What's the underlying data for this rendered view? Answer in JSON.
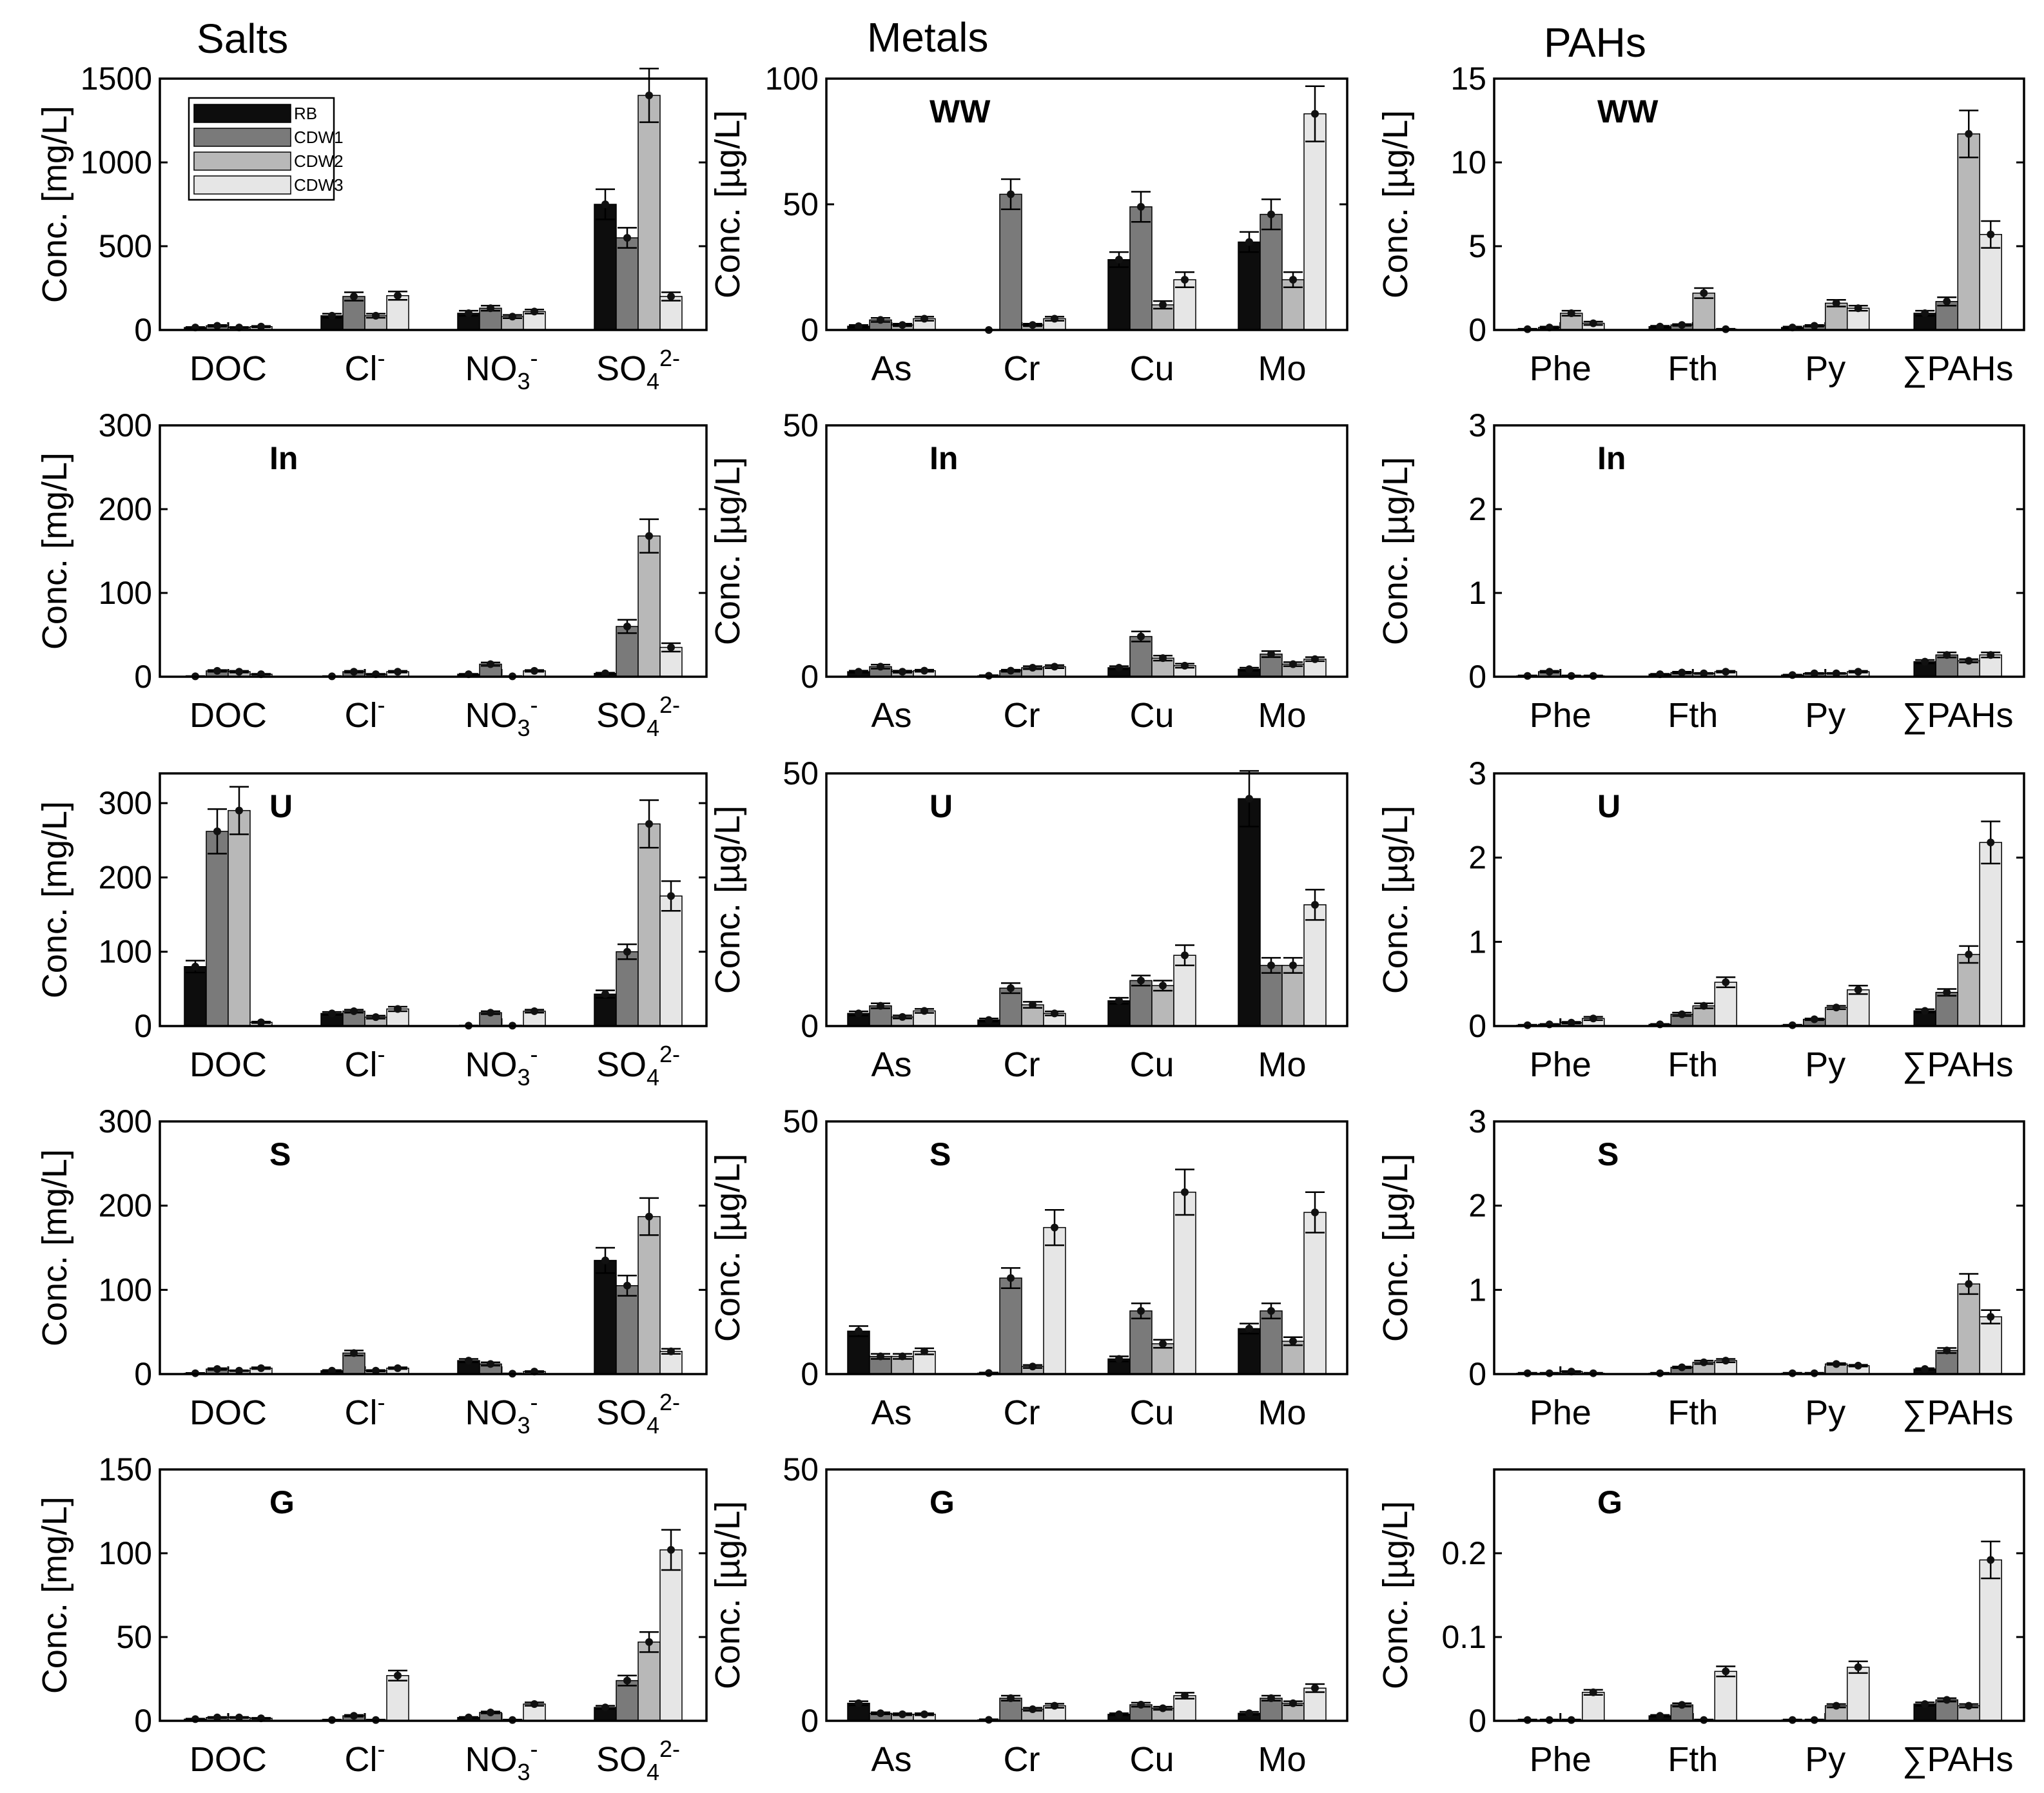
{
  "column_titles": [
    "Salts",
    "Metals",
    "PAHs"
  ],
  "series_names": [
    "RB",
    "CDW1",
    "CDW2",
    "CDW3"
  ],
  "series_colors": [
    "#0d0d0d",
    "#7a7a7a",
    "#b8b8b8",
    "#e6e6e6"
  ],
  "chart_data": [
    {
      "type": "bar",
      "panel": "WW",
      "group": "Salts",
      "ylabel": "Conc. [mg/L]",
      "ylim": [
        0,
        1500
      ],
      "yticks": [
        0,
        500,
        1000,
        1500
      ],
      "legend": "top-left",
      "categories": [
        "DOC",
        "Cl⁻",
        "NO₃⁻",
        "SO₄²⁻"
      ],
      "series": [
        {
          "name": "RB",
          "values": [
            15,
            85,
            100,
            750
          ]
        },
        {
          "name": "CDW1",
          "values": [
            25,
            200,
            130,
            550
          ]
        },
        {
          "name": "CDW2",
          "values": [
            15,
            85,
            80,
            1400
          ]
        },
        {
          "name": "CDW3",
          "values": [
            20,
            205,
            110,
            200
          ]
        }
      ],
      "errors": [
        [
          3,
          12,
          15,
          90
        ],
        [
          5,
          25,
          15,
          60
        ],
        [
          3,
          12,
          10,
          160
        ],
        [
          4,
          25,
          12,
          25
        ]
      ]
    },
    {
      "type": "bar",
      "panel": "WW",
      "group": "Metals",
      "ylabel": "Conc. [µg/L]",
      "ylim": [
        0,
        100
      ],
      "yticks": [
        0,
        50,
        100
      ],
      "categories": [
        "As",
        "Cr",
        "Cu",
        "Mo"
      ],
      "series": [
        {
          "name": "RB",
          "values": [
            1.5,
            0,
            28,
            35
          ]
        },
        {
          "name": "CDW1",
          "values": [
            4,
            54,
            49,
            46
          ]
        },
        {
          "name": "CDW2",
          "values": [
            2,
            2,
            10,
            20
          ]
        },
        {
          "name": "CDW3",
          "values": [
            4.5,
            4.5,
            20,
            86
          ]
        }
      ],
      "errors": [
        [
          0.5,
          0,
          3,
          4
        ],
        [
          0.8,
          6,
          6,
          6
        ],
        [
          0.5,
          0.5,
          1.5,
          3
        ],
        [
          0.8,
          0.8,
          3,
          11
        ]
      ]
    },
    {
      "type": "bar",
      "panel": "WW",
      "group": "PAHs",
      "ylabel": "Conc. [µg/L]",
      "ylim": [
        0,
        15
      ],
      "yticks": [
        0,
        5,
        10,
        15
      ],
      "categories": [
        "Phe",
        "Fth",
        "Py",
        "∑PAHs"
      ],
      "series": [
        {
          "name": "RB",
          "values": [
            0.05,
            0.2,
            0.15,
            1.0
          ]
        },
        {
          "name": "CDW1",
          "values": [
            0.15,
            0.3,
            0.25,
            1.7
          ]
        },
        {
          "name": "CDW2",
          "values": [
            1.0,
            2.2,
            1.6,
            11.7
          ]
        },
        {
          "name": "CDW3",
          "values": [
            0.4,
            0.05,
            1.3,
            5.7
          ]
        }
      ],
      "errors": [
        [
          0.02,
          0.05,
          0.05,
          0.15
        ],
        [
          0.05,
          0.05,
          0.05,
          0.25
        ],
        [
          0.15,
          0.3,
          0.2,
          1.4
        ],
        [
          0.1,
          0.02,
          0.15,
          0.8
        ]
      ]
    },
    {
      "type": "bar",
      "panel": "In",
      "group": "Salts",
      "ylabel": "Conc. [mg/L]",
      "ylim": [
        0,
        300
      ],
      "yticks": [
        0,
        100,
        200,
        300
      ],
      "categories": [
        "DOC",
        "Cl⁻",
        "NO₃⁻",
        "SO₄²⁻"
      ],
      "series": [
        {
          "name": "RB",
          "values": [
            0.5,
            0.5,
            3,
            4
          ]
        },
        {
          "name": "CDW1",
          "values": [
            7,
            6,
            15,
            60
          ]
        },
        {
          "name": "CDW2",
          "values": [
            6,
            3,
            0.5,
            168
          ]
        },
        {
          "name": "CDW3",
          "values": [
            3,
            6,
            7,
            35
          ]
        }
      ],
      "errors": [
        [
          0.3,
          0.3,
          0.5,
          0.8
        ],
        [
          1,
          1,
          2,
          8
        ],
        [
          1,
          0.5,
          0.3,
          20
        ],
        [
          0.5,
          1,
          1,
          5
        ]
      ]
    },
    {
      "type": "bar",
      "panel": "In",
      "group": "Metals",
      "ylabel": "Conc. [µg/L]",
      "ylim": [
        0,
        50
      ],
      "yticks": [
        0,
        50
      ],
      "categories": [
        "As",
        "Cr",
        "Cu",
        "Mo"
      ],
      "series": [
        {
          "name": "RB",
          "values": [
            1,
            0.2,
            1.8,
            1.5
          ]
        },
        {
          "name": "CDW1",
          "values": [
            2,
            1.2,
            8,
            4.5
          ]
        },
        {
          "name": "CDW2",
          "values": [
            1,
            1.8,
            3.7,
            2.5
          ]
        },
        {
          "name": "CDW3",
          "values": [
            1.2,
            2,
            2.2,
            3.5
          ]
        }
      ],
      "errors": [
        [
          0.2,
          0.1,
          0.3,
          0.3
        ],
        [
          0.4,
          0.2,
          1,
          0.6
        ],
        [
          0.2,
          0.3,
          0.5,
          0.4
        ],
        [
          0.2,
          0.3,
          0.4,
          0.4
        ]
      ]
    },
    {
      "type": "bar",
      "panel": "In",
      "group": "PAHs",
      "ylabel": "Conc. [µg/L]",
      "ylim": [
        0,
        3
      ],
      "yticks": [
        0,
        1,
        2,
        3
      ],
      "categories": [
        "Phe",
        "Fth",
        "Py",
        "∑PAHs"
      ],
      "series": [
        {
          "name": "RB",
          "values": [
            0.01,
            0.03,
            0.02,
            0.18
          ]
        },
        {
          "name": "CDW1",
          "values": [
            0.06,
            0.05,
            0.04,
            0.26
          ]
        },
        {
          "name": "CDW2",
          "values": [
            0.01,
            0.04,
            0.04,
            0.19
          ]
        },
        {
          "name": "CDW3",
          "values": [
            0.01,
            0.06,
            0.06,
            0.26
          ]
        }
      ],
      "errors": [
        [
          0.005,
          0.005,
          0.005,
          0.02
        ],
        [
          0.01,
          0.01,
          0.005,
          0.03
        ],
        [
          0.005,
          0.005,
          0.005,
          0.02
        ],
        [
          0.005,
          0.01,
          0.01,
          0.03
        ]
      ]
    },
    {
      "type": "bar",
      "panel": "U",
      "group": "Salts",
      "ylabel": "Conc. [mg/L]",
      "ylim": [
        0,
        340
      ],
      "yticks": [
        0,
        100,
        200,
        300
      ],
      "categories": [
        "DOC",
        "Cl⁻",
        "NO₃⁻",
        "SO₄²⁻"
      ],
      "series": [
        {
          "name": "RB",
          "values": [
            80,
            17,
            0.5,
            43
          ]
        },
        {
          "name": "CDW1",
          "values": [
            262,
            20,
            18,
            100
          ]
        },
        {
          "name": "CDW2",
          "values": [
            290,
            12,
            0.5,
            272
          ]
        },
        {
          "name": "CDW3",
          "values": [
            5,
            23,
            20,
            175
          ]
        }
      ],
      "errors": [
        [
          8,
          2,
          0.3,
          5
        ],
        [
          30,
          2,
          2,
          10
        ],
        [
          32,
          2,
          0.3,
          32
        ],
        [
          1,
          3,
          2,
          20
        ]
      ]
    },
    {
      "type": "bar",
      "panel": "U",
      "group": "Metals",
      "ylabel": "Conc. [µg/L]",
      "ylim": [
        0,
        50
      ],
      "yticks": [
        0,
        50
      ],
      "categories": [
        "As",
        "Cr",
        "Cu",
        "Mo"
      ],
      "series": [
        {
          "name": "RB",
          "values": [
            2.5,
            1.2,
            5,
            45
          ]
        },
        {
          "name": "CDW1",
          "values": [
            4,
            7.5,
            9,
            12
          ]
        },
        {
          "name": "CDW2",
          "values": [
            1.8,
            4.2,
            8,
            12
          ]
        },
        {
          "name": "CDW3",
          "values": [
            3,
            2.5,
            14,
            24
          ]
        }
      ],
      "errors": [
        [
          0.4,
          0.3,
          0.6,
          5.5
        ],
        [
          0.5,
          1,
          1,
          1.5
        ],
        [
          0.3,
          0.6,
          1,
          1.5
        ],
        [
          0.4,
          0.4,
          2,
          3
        ]
      ]
    },
    {
      "type": "bar",
      "panel": "U",
      "group": "PAHs",
      "ylabel": "Conc. [µg/L]",
      "ylim": [
        0,
        3
      ],
      "yticks": [
        0,
        1,
        2,
        3
      ],
      "categories": [
        "Phe",
        "Fth",
        "Py",
        "∑PAHs"
      ],
      "series": [
        {
          "name": "RB",
          "values": [
            0.01,
            0.02,
            0.01,
            0.18
          ]
        },
        {
          "name": "CDW1",
          "values": [
            0.02,
            0.14,
            0.08,
            0.4
          ]
        },
        {
          "name": "CDW2",
          "values": [
            0.04,
            0.24,
            0.22,
            0.85
          ]
        },
        {
          "name": "CDW3",
          "values": [
            0.09,
            0.52,
            0.43,
            2.18
          ]
        }
      ],
      "errors": [
        [
          0.005,
          0.005,
          0.005,
          0.02
        ],
        [
          0.005,
          0.02,
          0.01,
          0.04
        ],
        [
          0.01,
          0.03,
          0.02,
          0.1
        ],
        [
          0.02,
          0.06,
          0.05,
          0.25
        ]
      ]
    },
    {
      "type": "bar",
      "panel": "S",
      "group": "Salts",
      "ylabel": "Conc. [mg/L]",
      "ylim": [
        0,
        300
      ],
      "yticks": [
        0,
        100,
        200,
        300
      ],
      "categories": [
        "DOC",
        "Cl⁻",
        "NO₃⁻",
        "SO₄²⁻"
      ],
      "series": [
        {
          "name": "RB",
          "values": [
            1,
            4,
            16,
            135
          ]
        },
        {
          "name": "CDW1",
          "values": [
            6,
            25,
            12,
            105
          ]
        },
        {
          "name": "CDW2",
          "values": [
            4,
            4,
            0.5,
            187
          ]
        },
        {
          "name": "CDW3",
          "values": [
            7,
            7,
            3,
            27
          ]
        }
      ],
      "errors": [
        [
          0.3,
          0.8,
          2,
          15
        ],
        [
          1,
          3,
          2,
          12
        ],
        [
          0.5,
          0.8,
          0.3,
          22
        ],
        [
          1,
          1,
          0.5,
          3
        ]
      ]
    },
    {
      "type": "bar",
      "panel": "S",
      "group": "Metals",
      "ylabel": "Conc. [µg/L]",
      "ylim": [
        0,
        50
      ],
      "yticks": [
        0,
        50
      ],
      "categories": [
        "As",
        "Cr",
        "Cu",
        "Mo"
      ],
      "series": [
        {
          "name": "RB",
          "values": [
            8.5,
            0.2,
            3,
            9
          ]
        },
        {
          "name": "CDW1",
          "values": [
            3.5,
            19,
            12.5,
            12.5
          ]
        },
        {
          "name": "CDW2",
          "values": [
            3.5,
            1.5,
            6,
            6.5
          ]
        },
        {
          "name": "CDW3",
          "values": [
            4.5,
            29,
            36,
            32
          ]
        }
      ],
      "errors": [
        [
          1,
          0.1,
          0.5,
          1
        ],
        [
          0.5,
          2,
          1.5,
          1.5
        ],
        [
          0.5,
          0.3,
          0.8,
          0.8
        ],
        [
          0.6,
          3.5,
          4.5,
          4
        ]
      ]
    },
    {
      "type": "bar",
      "panel": "S",
      "group": "PAHs",
      "ylabel": "Conc. [µg/L]",
      "ylim": [
        0,
        3
      ],
      "yticks": [
        0,
        1,
        2,
        3
      ],
      "categories": [
        "Phe",
        "Fth",
        "Py",
        "∑PAHs"
      ],
      "series": [
        {
          "name": "RB",
          "values": [
            0.01,
            0.01,
            0.01,
            0.06
          ]
        },
        {
          "name": "CDW1",
          "values": [
            0.01,
            0.08,
            0.01,
            0.28
          ]
        },
        {
          "name": "CDW2",
          "values": [
            0.03,
            0.14,
            0.12,
            1.07
          ]
        },
        {
          "name": "CDW3",
          "values": [
            0.01,
            0.16,
            0.1,
            0.68
          ]
        }
      ],
      "errors": [
        [
          0.005,
          0.005,
          0.005,
          0.01
        ],
        [
          0.005,
          0.01,
          0.005,
          0.03
        ],
        [
          0.005,
          0.02,
          0.01,
          0.12
        ],
        [
          0.005,
          0.02,
          0.01,
          0.08
        ]
      ]
    },
    {
      "type": "bar",
      "panel": "G",
      "group": "Salts",
      "ylabel": "Conc. [mg/L]",
      "ylim": [
        0,
        150
      ],
      "yticks": [
        0,
        50,
        100,
        150
      ],
      "categories": [
        "DOC",
        "Cl⁻",
        "NO₃⁻",
        "SO₄²⁻"
      ],
      "series": [
        {
          "name": "RB",
          "values": [
            1,
            0.5,
            2,
            8
          ]
        },
        {
          "name": "CDW1",
          "values": [
            2,
            3,
            5,
            24
          ]
        },
        {
          "name": "CDW2",
          "values": [
            2,
            0.5,
            0.5,
            47
          ]
        },
        {
          "name": "CDW3",
          "values": [
            1.5,
            27,
            10,
            102
          ]
        }
      ],
      "errors": [
        [
          0.3,
          0.2,
          0.3,
          1
        ],
        [
          0.3,
          0.5,
          0.6,
          3
        ],
        [
          0.3,
          0.2,
          0.2,
          6
        ],
        [
          0.3,
          3,
          1,
          12
        ]
      ]
    },
    {
      "type": "bar",
      "panel": "G",
      "group": "Metals",
      "ylabel": "Conc. [µg/L]",
      "ylim": [
        0,
        50
      ],
      "yticks": [
        0,
        50
      ],
      "categories": [
        "As",
        "Cr",
        "Cu",
        "Mo"
      ],
      "series": [
        {
          "name": "RB",
          "values": [
            3.5,
            0.2,
            1.3,
            1.5
          ]
        },
        {
          "name": "CDW1",
          "values": [
            1.5,
            4.5,
            3.2,
            4.5
          ]
        },
        {
          "name": "CDW2",
          "values": [
            1.3,
            2.3,
            2.5,
            3.5
          ]
        },
        {
          "name": "CDW3",
          "values": [
            1.3,
            3,
            5,
            6.5
          ]
        }
      ],
      "errors": [
        [
          0.4,
          0.1,
          0.2,
          0.3
        ],
        [
          0.2,
          0.5,
          0.4,
          0.5
        ],
        [
          0.2,
          0.3,
          0.3,
          0.4
        ],
        [
          0.2,
          0.4,
          0.6,
          0.8
        ]
      ]
    },
    {
      "type": "bar",
      "panel": "G",
      "group": "PAHs",
      "ylabel": "Conc. [µg/L]",
      "ylim": [
        0,
        0.3
      ],
      "yticks": [
        0,
        0.1,
        0.2
      ],
      "categories": [
        "Phe",
        "Fth",
        "Py",
        "∑PAHs"
      ],
      "series": [
        {
          "name": "RB",
          "values": [
            0.001,
            0.006,
            0.001,
            0.02
          ]
        },
        {
          "name": "CDW1",
          "values": [
            0.001,
            0.019,
            0.001,
            0.025
          ]
        },
        {
          "name": "CDW2",
          "values": [
            0.001,
            0.001,
            0.018,
            0.018
          ]
        },
        {
          "name": "CDW3",
          "values": [
            0.034,
            0.059,
            0.064,
            0.192
          ]
        }
      ],
      "errors": [
        [
          0.0005,
          0.001,
          0.0005,
          0.002
        ],
        [
          0.0005,
          0.002,
          0.0005,
          0.002
        ],
        [
          0.0005,
          0.0005,
          0.002,
          0.002
        ],
        [
          0.003,
          0.006,
          0.007,
          0.022
        ]
      ]
    }
  ]
}
